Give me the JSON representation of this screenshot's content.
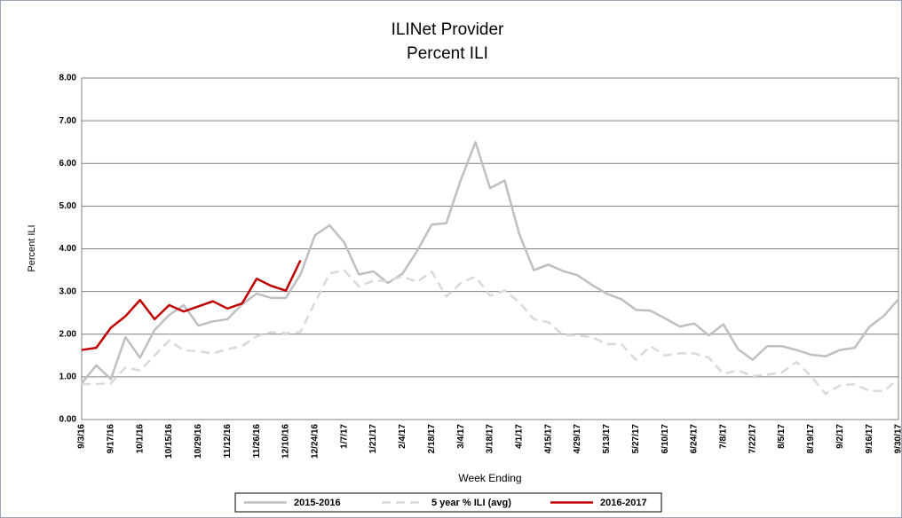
{
  "chart_data": {
    "type": "line",
    "title": "ILINet Provider",
    "subtitle": "Percent ILI",
    "x_label": "Week Ending",
    "y_label": "Percent ILI",
    "categories": [
      "9/3/16",
      null,
      "9/17/16",
      null,
      "10/1/16",
      null,
      "10/15/16",
      null,
      "10/29/16",
      null,
      "11/12/16",
      null,
      "11/26/16",
      null,
      "12/10/16",
      null,
      "12/24/16",
      null,
      "1/7/17",
      null,
      "1/21/17",
      null,
      "2/4/17",
      null,
      "2/18/17",
      null,
      "3/4/17",
      null,
      "3/18/17",
      null,
      "4/1/17",
      null,
      "4/15/17",
      null,
      "4/29/17",
      null,
      "5/13/17",
      null,
      "5/27/17",
      null,
      "6/10/17",
      null,
      "6/24/17",
      null,
      "7/8/17",
      null,
      "7/22/17",
      null,
      "8/5/17",
      null,
      "8/19/17",
      null,
      "9/2/17",
      null,
      "9/16/17",
      null,
      "9/30/17"
    ],
    "series": [
      {
        "name": "2015-2016",
        "color": "#bfbfbf",
        "dashed": false,
        "values": [
          0.85,
          1.27,
          0.95,
          1.93,
          1.45,
          2.1,
          2.45,
          2.68,
          2.2,
          2.3,
          2.35,
          2.7,
          2.95,
          2.85,
          2.85,
          3.4,
          4.32,
          4.55,
          4.15,
          3.4,
          3.47,
          3.2,
          3.42,
          3.95,
          4.57,
          4.6,
          5.62,
          6.5,
          5.42,
          5.6,
          4.35,
          3.5,
          3.63,
          3.48,
          3.38,
          3.15,
          2.95,
          2.82,
          2.57,
          2.55,
          2.37,
          2.18,
          2.25,
          1.97,
          2.23,
          1.65,
          1.4,
          1.72,
          1.72,
          1.63,
          1.52,
          1.48,
          1.63,
          1.68,
          2.17,
          2.43,
          2.82
        ]
      },
      {
        "name": "5 year % ILI (avg)",
        "color": "#d9d9d9",
        "dashed": true,
        "values": [
          0.83,
          0.83,
          0.85,
          1.22,
          1.15,
          1.5,
          1.85,
          1.62,
          1.6,
          1.55,
          1.65,
          1.72,
          1.95,
          2.05,
          2.02,
          2.05,
          2.75,
          3.42,
          3.5,
          3.12,
          3.25,
          3.25,
          3.35,
          3.22,
          3.47,
          2.88,
          3.2,
          3.35,
          2.9,
          3.02,
          2.75,
          2.35,
          2.28,
          1.98,
          1.97,
          1.93,
          1.77,
          1.77,
          1.4,
          1.72,
          1.5,
          1.55,
          1.55,
          1.45,
          1.07,
          1.15,
          1.02,
          1.05,
          1.1,
          1.35,
          1.02,
          0.6,
          0.8,
          0.83,
          0.67,
          0.67,
          0.95
        ]
      },
      {
        "name": "2016-2017",
        "color": "#c00000",
        "dashed": false,
        "values": [
          1.63,
          1.68,
          2.15,
          2.42,
          2.8,
          2.35,
          2.68,
          2.53,
          2.65,
          2.77,
          2.6,
          2.72,
          3.3,
          3.13,
          3.02,
          3.73,
          null,
          null,
          null,
          null,
          null,
          null,
          null,
          null,
          null,
          null,
          null,
          null,
          null,
          null,
          null,
          null,
          null,
          null,
          null,
          null,
          null,
          null,
          null,
          null,
          null,
          null,
          null,
          null,
          null,
          null,
          null,
          null,
          null,
          null,
          null,
          null,
          null,
          null,
          null,
          null,
          null
        ]
      }
    ],
    "ylim": [
      0,
      8
    ],
    "yticks": [
      {
        "value": 0,
        "label": "0.00"
      },
      {
        "value": 1,
        "label": "1.00"
      },
      {
        "value": 2,
        "label": "2.00"
      },
      {
        "value": 3,
        "label": "3.00"
      },
      {
        "value": 4,
        "label": "4.00"
      },
      {
        "value": 5,
        "label": "5.00"
      },
      {
        "value": 6,
        "label": "6.00"
      },
      {
        "value": 7,
        "label": "7.00"
      },
      {
        "value": 8,
        "label": "8.00"
      }
    ],
    "grid": true
  }
}
